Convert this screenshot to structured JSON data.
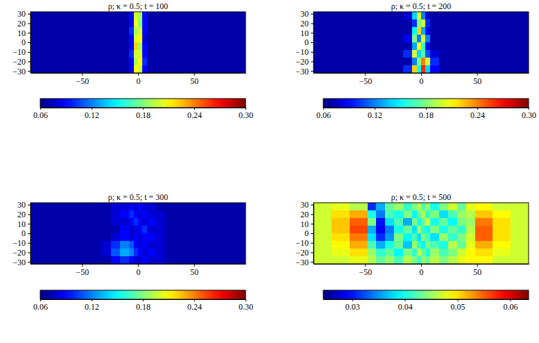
{
  "chart_data": [
    {
      "type": "heatmap",
      "title": "ρ; κ = 0.5; t = 100",
      "x_edges": [
        -96,
        -80,
        -64,
        -48,
        -40,
        -32,
        -24,
        -16,
        -8,
        -4,
        0,
        4,
        8,
        16,
        24,
        32,
        40,
        48,
        64,
        80,
        96
      ],
      "y_edges": [
        32,
        24,
        16,
        8,
        0,
        -8,
        -16,
        -24,
        -32
      ],
      "xlim": [
        -96,
        96
      ],
      "ylim": [
        -32,
        32
      ],
      "xticks": [
        {
          "value": -50,
          "label": "−50"
        },
        0,
        50
      ],
      "yticks": [
        {
          "value": -30,
          "label": "−30"
        },
        {
          "value": -20,
          "label": "−20"
        },
        {
          "value": -10,
          "label": "−10"
        },
        0,
        10,
        20,
        30
      ],
      "cells": [
        [
          0.07,
          0.07,
          0.07,
          0.07,
          0.07,
          0.07,
          0.07,
          0.07,
          0.09,
          0.2,
          0.19,
          0.09,
          0.07,
          0.07,
          0.07,
          0.07,
          0.07,
          0.07,
          0.07,
          0.07
        ],
        [
          0.07,
          0.07,
          0.07,
          0.07,
          0.07,
          0.07,
          0.07,
          0.07,
          0.09,
          0.21,
          0.18,
          0.09,
          0.07,
          0.07,
          0.07,
          0.07,
          0.07,
          0.07,
          0.07,
          0.07
        ],
        [
          0.07,
          0.07,
          0.07,
          0.07,
          0.07,
          0.07,
          0.07,
          0.07,
          0.1,
          0.19,
          0.2,
          0.09,
          0.07,
          0.07,
          0.07,
          0.07,
          0.07,
          0.07,
          0.07,
          0.07
        ],
        [
          0.07,
          0.07,
          0.07,
          0.07,
          0.07,
          0.07,
          0.07,
          0.07,
          0.09,
          0.2,
          0.21,
          0.08,
          0.07,
          0.07,
          0.07,
          0.07,
          0.07,
          0.07,
          0.07,
          0.07
        ],
        [
          0.07,
          0.07,
          0.07,
          0.07,
          0.07,
          0.07,
          0.07,
          0.07,
          0.09,
          0.22,
          0.19,
          0.09,
          0.07,
          0.07,
          0.07,
          0.07,
          0.07,
          0.07,
          0.07,
          0.07
        ],
        [
          0.07,
          0.07,
          0.07,
          0.07,
          0.07,
          0.07,
          0.07,
          0.07,
          0.1,
          0.2,
          0.2,
          0.09,
          0.07,
          0.07,
          0.07,
          0.07,
          0.07,
          0.07,
          0.07,
          0.07
        ],
        [
          0.07,
          0.07,
          0.07,
          0.07,
          0.07,
          0.07,
          0.07,
          0.07,
          0.09,
          0.19,
          0.21,
          0.1,
          0.07,
          0.07,
          0.07,
          0.07,
          0.07,
          0.07,
          0.07,
          0.07
        ],
        [
          0.07,
          0.07,
          0.07,
          0.07,
          0.07,
          0.07,
          0.07,
          0.07,
          0.09,
          0.21,
          0.2,
          0.09,
          0.07,
          0.07,
          0.07,
          0.07,
          0.07,
          0.07,
          0.07,
          0.07
        ]
      ],
      "colorbar": {
        "range": [
          0.06,
          0.3
        ],
        "ticks": [
          0.06,
          0.12,
          0.18,
          0.24,
          {
            "value": 0.3,
            "label": "0.30"
          }
        ]
      }
    },
    {
      "type": "heatmap",
      "title": "ρ; κ = 0.5; t = 200",
      "x_edges": [
        -96,
        -80,
        -64,
        -48,
        -40,
        -32,
        -24,
        -16,
        -8,
        -4,
        0,
        4,
        8,
        16,
        24,
        32,
        40,
        48,
        64,
        80,
        96
      ],
      "y_edges": [
        32,
        24,
        16,
        8,
        0,
        -8,
        -16,
        -24,
        -32
      ],
      "xlim": [
        -96,
        96
      ],
      "ylim": [
        -32,
        32
      ],
      "xticks": [
        {
          "value": -50,
          "label": "−50"
        },
        0,
        50
      ],
      "yticks": [
        {
          "value": -30,
          "label": "−30"
        },
        {
          "value": -20,
          "label": "−20"
        },
        {
          "value": -10,
          "label": "−10"
        },
        0,
        10,
        20,
        30
      ],
      "cells": [
        [
          0.07,
          0.07,
          0.07,
          0.07,
          0.07,
          0.07,
          0.07,
          0.08,
          0.14,
          0.2,
          0.12,
          0.08,
          0.07,
          0.07,
          0.07,
          0.07,
          0.07,
          0.07,
          0.07,
          0.07
        ],
        [
          0.07,
          0.07,
          0.07,
          0.07,
          0.07,
          0.07,
          0.07,
          0.07,
          0.1,
          0.18,
          0.2,
          0.1,
          0.07,
          0.07,
          0.07,
          0.07,
          0.07,
          0.07,
          0.07,
          0.07
        ],
        [
          0.07,
          0.07,
          0.07,
          0.07,
          0.07,
          0.07,
          0.07,
          0.07,
          0.15,
          0.22,
          0.13,
          0.09,
          0.07,
          0.07,
          0.07,
          0.07,
          0.07,
          0.07,
          0.07,
          0.07
        ],
        [
          0.07,
          0.07,
          0.07,
          0.07,
          0.07,
          0.07,
          0.07,
          0.09,
          0.18,
          0.12,
          0.2,
          0.12,
          0.07,
          0.07,
          0.07,
          0.07,
          0.07,
          0.07,
          0.07,
          0.07
        ],
        [
          0.07,
          0.07,
          0.07,
          0.07,
          0.07,
          0.07,
          0.07,
          0.07,
          0.13,
          0.21,
          0.16,
          0.09,
          0.07,
          0.07,
          0.07,
          0.07,
          0.07,
          0.07,
          0.07,
          0.07
        ],
        [
          0.07,
          0.07,
          0.07,
          0.07,
          0.07,
          0.07,
          0.07,
          0.1,
          0.2,
          0.14,
          0.17,
          0.11,
          0.08,
          0.07,
          0.07,
          0.07,
          0.07,
          0.07,
          0.07,
          0.07
        ],
        [
          0.07,
          0.07,
          0.07,
          0.07,
          0.07,
          0.07,
          0.07,
          0.07,
          0.12,
          0.18,
          0.24,
          0.2,
          0.1,
          0.07,
          0.07,
          0.07,
          0.07,
          0.07,
          0.07,
          0.07
        ],
        [
          0.07,
          0.07,
          0.07,
          0.07,
          0.07,
          0.07,
          0.07,
          0.1,
          0.22,
          0.15,
          0.26,
          0.14,
          0.09,
          0.07,
          0.07,
          0.07,
          0.07,
          0.07,
          0.07,
          0.07
        ]
      ],
      "colorbar": {
        "range": [
          0.06,
          0.3
        ],
        "ticks": [
          0.06,
          0.12,
          0.18,
          0.24,
          {
            "value": 0.3,
            "label": "0.30"
          }
        ]
      }
    },
    {
      "type": "heatmap",
      "title": "ρ; κ = 0.5; t = 300",
      "x_edges": [
        -96,
        -80,
        -64,
        -48,
        -40,
        -32,
        -24,
        -16,
        -8,
        -4,
        0,
        4,
        8,
        16,
        24,
        32,
        40,
        48,
        64,
        80,
        96
      ],
      "y_edges": [
        32,
        24,
        16,
        8,
        0,
        -8,
        -16,
        -24,
        -32
      ],
      "xlim": [
        -96,
        96
      ],
      "ylim": [
        -32,
        32
      ],
      "xticks": [
        {
          "value": -50,
          "label": "−50"
        },
        0,
        50
      ],
      "yticks": [
        {
          "value": -30,
          "label": "−30"
        },
        {
          "value": -20,
          "label": "−20"
        },
        {
          "value": -10,
          "label": "−10"
        },
        0,
        10,
        20,
        30
      ],
      "cells": [
        [
          0.07,
          0.07,
          0.07,
          0.07,
          0.07,
          0.07,
          0.08,
          0.08,
          0.09,
          0.08,
          0.09,
          0.08,
          0.08,
          0.07,
          0.07,
          0.07,
          0.07,
          0.07,
          0.07,
          0.07
        ],
        [
          0.07,
          0.07,
          0.07,
          0.07,
          0.07,
          0.07,
          0.08,
          0.09,
          0.1,
          0.09,
          0.08,
          0.09,
          0.08,
          0.08,
          0.07,
          0.07,
          0.07,
          0.07,
          0.07,
          0.07
        ],
        [
          0.07,
          0.07,
          0.07,
          0.07,
          0.07,
          0.07,
          0.08,
          0.08,
          0.09,
          0.1,
          0.09,
          0.08,
          0.09,
          0.08,
          0.07,
          0.07,
          0.07,
          0.07,
          0.07,
          0.07
        ],
        [
          0.07,
          0.07,
          0.07,
          0.07,
          0.07,
          0.07,
          0.07,
          0.09,
          0.08,
          0.08,
          0.09,
          0.1,
          0.08,
          0.08,
          0.07,
          0.07,
          0.07,
          0.07,
          0.07,
          0.07
        ],
        [
          0.07,
          0.07,
          0.07,
          0.07,
          0.07,
          0.07,
          0.08,
          0.09,
          0.08,
          0.09,
          0.08,
          0.09,
          0.09,
          0.08,
          0.07,
          0.07,
          0.07,
          0.07,
          0.07,
          0.07
        ],
        [
          0.07,
          0.07,
          0.07,
          0.07,
          0.07,
          0.08,
          0.1,
          0.12,
          0.11,
          0.09,
          0.08,
          0.09,
          0.08,
          0.08,
          0.07,
          0.07,
          0.07,
          0.07,
          0.07,
          0.07
        ],
        [
          0.07,
          0.07,
          0.07,
          0.07,
          0.07,
          0.08,
          0.11,
          0.13,
          0.12,
          0.1,
          0.09,
          0.08,
          0.09,
          0.08,
          0.07,
          0.07,
          0.07,
          0.07,
          0.07,
          0.07
        ],
        [
          0.07,
          0.07,
          0.07,
          0.07,
          0.07,
          0.07,
          0.09,
          0.1,
          0.09,
          0.08,
          0.08,
          0.09,
          0.08,
          0.08,
          0.07,
          0.07,
          0.07,
          0.07,
          0.07,
          0.07
        ]
      ],
      "colorbar": {
        "range": [
          0.06,
          0.3
        ],
        "ticks": [
          0.06,
          0.12,
          0.18,
          0.24,
          {
            "value": 0.3,
            "label": "0.30"
          }
        ]
      }
    },
    {
      "type": "heatmap",
      "title": "ρ; κ = 0.5; t = 500",
      "x_edges": [
        -96,
        -80,
        -64,
        -48,
        -40,
        -32,
        -24,
        -16,
        -8,
        -4,
        0,
        4,
        8,
        16,
        24,
        32,
        40,
        48,
        64,
        80,
        96
      ],
      "y_edges": [
        32,
        24,
        16,
        8,
        0,
        -8,
        -16,
        -24,
        -32
      ],
      "xlim": [
        -96,
        96
      ],
      "ylim": [
        -32,
        32
      ],
      "xticks": [
        {
          "value": -50,
          "label": "−50"
        },
        0,
        50
      ],
      "yticks": [
        {
          "value": -30,
          "label": "−30"
        },
        {
          "value": -20,
          "label": "−20"
        },
        {
          "value": -10,
          "label": "−10"
        },
        0,
        10,
        20,
        30
      ],
      "cells": [
        [
          0.047,
          0.048,
          0.046,
          0.031,
          0.036,
          0.043,
          0.045,
          0.041,
          0.044,
          0.046,
          0.042,
          0.045,
          0.04,
          0.044,
          0.047,
          0.043,
          0.048,
          0.049,
          0.047,
          0.047
        ],
        [
          0.047,
          0.05,
          0.052,
          0.04,
          0.034,
          0.042,
          0.04,
          0.044,
          0.039,
          0.043,
          0.046,
          0.041,
          0.044,
          0.038,
          0.042,
          0.045,
          0.046,
          0.051,
          0.049,
          0.047
        ],
        [
          0.047,
          0.051,
          0.055,
          0.044,
          0.03,
          0.038,
          0.042,
          0.036,
          0.044,
          0.04,
          0.043,
          0.047,
          0.04,
          0.043,
          0.039,
          0.044,
          0.045,
          0.054,
          0.05,
          0.047
        ],
        [
          0.047,
          0.051,
          0.056,
          0.036,
          0.029,
          0.034,
          0.04,
          0.043,
          0.038,
          0.045,
          0.041,
          0.039,
          0.044,
          0.04,
          0.043,
          0.041,
          0.046,
          0.055,
          0.05,
          0.047
        ],
        [
          0.047,
          0.05,
          0.054,
          0.038,
          0.031,
          0.035,
          0.044,
          0.039,
          0.042,
          0.038,
          0.044,
          0.042,
          0.038,
          0.045,
          0.041,
          0.044,
          0.047,
          0.055,
          0.05,
          0.047
        ],
        [
          0.047,
          0.049,
          0.052,
          0.042,
          0.036,
          0.04,
          0.043,
          0.037,
          0.045,
          0.041,
          0.039,
          0.044,
          0.042,
          0.04,
          0.046,
          0.043,
          0.048,
          0.052,
          0.049,
          0.047
        ],
        [
          0.047,
          0.048,
          0.05,
          0.045,
          0.041,
          0.043,
          0.039,
          0.044,
          0.041,
          0.046,
          0.043,
          0.04,
          0.045,
          0.042,
          0.044,
          0.047,
          0.049,
          0.05,
          0.048,
          0.047
        ],
        [
          0.047,
          0.047,
          0.048,
          0.046,
          0.043,
          0.045,
          0.042,
          0.046,
          0.044,
          0.041,
          0.045,
          0.043,
          0.046,
          0.044,
          0.046,
          0.048,
          0.049,
          0.049,
          0.047,
          0.047
        ]
      ],
      "colorbar": {
        "range": [
          0.0245,
          0.0635
        ],
        "ticks": [
          0.03,
          0.04,
          0.05,
          0.06
        ]
      }
    }
  ]
}
